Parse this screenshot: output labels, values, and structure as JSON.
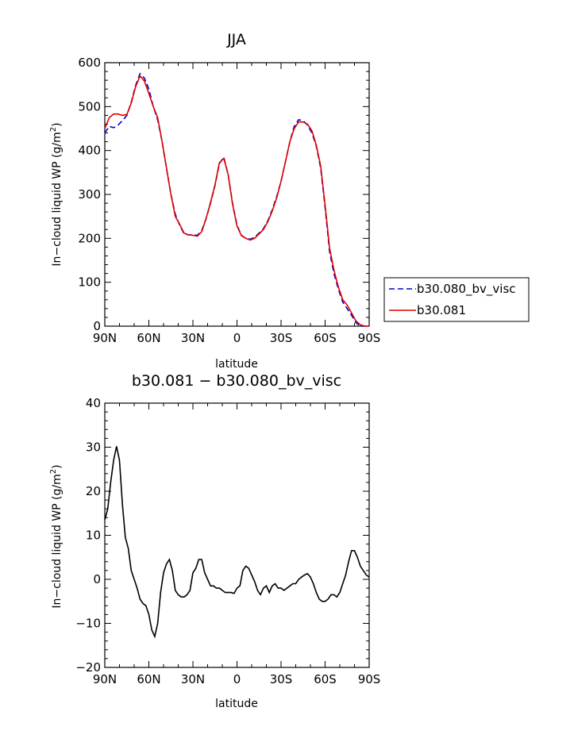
{
  "chart_data": [
    {
      "type": "line",
      "title": "JJA",
      "xlabel": "latitude",
      "ylabel": "In−cloud liquid WP (g/m²)",
      "ylabel_main": "In−cloud liquid WP (g/m",
      "ylabel_sup": "2",
      "ylabel_close": ")",
      "xlim": [
        90,
        -90
      ],
      "ylim": [
        0,
        600
      ],
      "x_ticks": [
        90,
        60,
        30,
        0,
        -30,
        -60,
        -90
      ],
      "x_tick_labels": [
        "90N",
        "60N",
        "30N",
        "0",
        "30S",
        "60S",
        "90S"
      ],
      "y_ticks": [
        0,
        100,
        200,
        300,
        400,
        500,
        600
      ],
      "y_tick_labels": [
        "0",
        "100",
        "200",
        "300",
        "400",
        "500",
        "600"
      ],
      "legend_position": "right",
      "x": [
        90,
        87,
        84,
        81,
        78,
        75,
        72,
        69,
        66,
        63,
        60,
        57,
        54,
        51,
        48,
        45,
        42,
        39,
        36,
        33,
        30,
        27,
        24,
        21,
        18,
        15,
        12,
        9,
        6,
        3,
        0,
        -3,
        -6,
        -9,
        -12,
        -15,
        -18,
        -21,
        -24,
        -27,
        -30,
        -33,
        -36,
        -39,
        -42,
        -45,
        -48,
        -51,
        -54,
        -57,
        -60,
        -63,
        -66,
        -69,
        -72,
        -75,
        -78,
        -81,
        -84,
        -87,
        -90
      ],
      "series": [
        {
          "name": "b30.080_bv_visc",
          "color": "#0000cc",
          "dash": "dashed",
          "values": [
            440,
            455,
            452,
            458,
            468,
            480,
            510,
            548,
            575,
            565,
            540,
            500,
            470,
            420,
            360,
            300,
            255,
            230,
            210,
            208,
            208,
            207,
            218,
            245,
            280,
            320,
            370,
            385,
            345,
            280,
            230,
            207,
            200,
            198,
            202,
            212,
            222,
            240,
            265,
            295,
            330,
            375,
            420,
            455,
            470,
            468,
            458,
            440,
            410,
            360,
            270,
            170,
            120,
            85,
            55,
            40,
            25,
            8,
            0,
            0,
            0
          ]
        },
        {
          "name": "b30.081",
          "color": "#e00000",
          "dash": "solid",
          "values": [
            450,
            475,
            483,
            483,
            480,
            482,
            508,
            545,
            570,
            558,
            530,
            500,
            475,
            420,
            360,
            300,
            250,
            232,
            212,
            208,
            207,
            205,
            215,
            245,
            282,
            322,
            372,
            382,
            345,
            278,
            228,
            206,
            200,
            196,
            200,
            210,
            220,
            238,
            262,
            292,
            330,
            375,
            420,
            450,
            465,
            465,
            460,
            445,
            412,
            365,
            276,
            178,
            128,
            90,
            60,
            48,
            30,
            12,
            3,
            0,
            0
          ]
        }
      ]
    },
    {
      "type": "line",
      "title": "b30.081 − b30.080_bv_visc",
      "xlabel": "latitude",
      "ylabel": "In−cloud liquid WP (g/m²)",
      "ylabel_main": "In−cloud liquid WP (g/m",
      "ylabel_sup": "2",
      "ylabel_close": ")",
      "xlim": [
        90,
        -90
      ],
      "ylim": [
        -20,
        40
      ],
      "x_ticks": [
        90,
        60,
        30,
        0,
        -30,
        -60,
        -90
      ],
      "x_tick_labels": [
        "90N",
        "60N",
        "30N",
        "0",
        "30S",
        "60S",
        "90S"
      ],
      "y_ticks": [
        -20,
        -10,
        0,
        10,
        20,
        30,
        40
      ],
      "y_tick_labels": [
        "−20",
        "−10",
        "0",
        "10",
        "20",
        "30",
        "40"
      ],
      "x": [
        90,
        88,
        86,
        84,
        82,
        80,
        78,
        76,
        74,
        72,
        70,
        68,
        66,
        64,
        62,
        60,
        58,
        56,
        54,
        52,
        50,
        48,
        46,
        44,
        42,
        40,
        38,
        36,
        34,
        32,
        30,
        28,
        26,
        24,
        22,
        20,
        18,
        16,
        14,
        12,
        10,
        8,
        6,
        4,
        2,
        0,
        -2,
        -4,
        -6,
        -8,
        -10,
        -12,
        -14,
        -16,
        -18,
        -20,
        -22,
        -24,
        -26,
        -28,
        -30,
        -32,
        -34,
        -36,
        -38,
        -40,
        -42,
        -44,
        -46,
        -48,
        -50,
        -52,
        -54,
        -56,
        -58,
        -60,
        -62,
        -64,
        -66,
        -68,
        -70,
        -72,
        -74,
        -76,
        -78,
        -80,
        -82,
        -84,
        -86,
        -88,
        -90
      ],
      "series": [
        {
          "name": "",
          "color": "#000000",
          "dash": "solid",
          "values": [
            13.5,
            16,
            22,
            27,
            30.2,
            27,
            17,
            9.5,
            7,
            2,
            0,
            -2,
            -4.5,
            -5.5,
            -6,
            -8,
            -11.5,
            -13,
            -10,
            -3,
            1.5,
            3.5,
            4.5,
            2,
            -2.5,
            -3.5,
            -4,
            -4,
            -3.5,
            -2.5,
            1.5,
            2.5,
            4.5,
            4.5,
            1.5,
            0,
            -1.5,
            -1.5,
            -2,
            -2,
            -2.5,
            -3,
            -3,
            -3,
            -3.2,
            -2,
            -1.5,
            2,
            3,
            2.5,
            1,
            -0.5,
            -2.5,
            -3.5,
            -2,
            -1.5,
            -3,
            -1.5,
            -1,
            -2,
            -2,
            -2.5,
            -2,
            -1.5,
            -1,
            -1,
            0,
            0.5,
            1,
            1.3,
            0.5,
            -1,
            -3,
            -4.5,
            -5,
            -5,
            -4.5,
            -3.5,
            -3.5,
            -4,
            -3,
            -1,
            1,
            4,
            6.5,
            6.5,
            5,
            3,
            2,
            1,
            0.5
          ]
        }
      ]
    }
  ]
}
